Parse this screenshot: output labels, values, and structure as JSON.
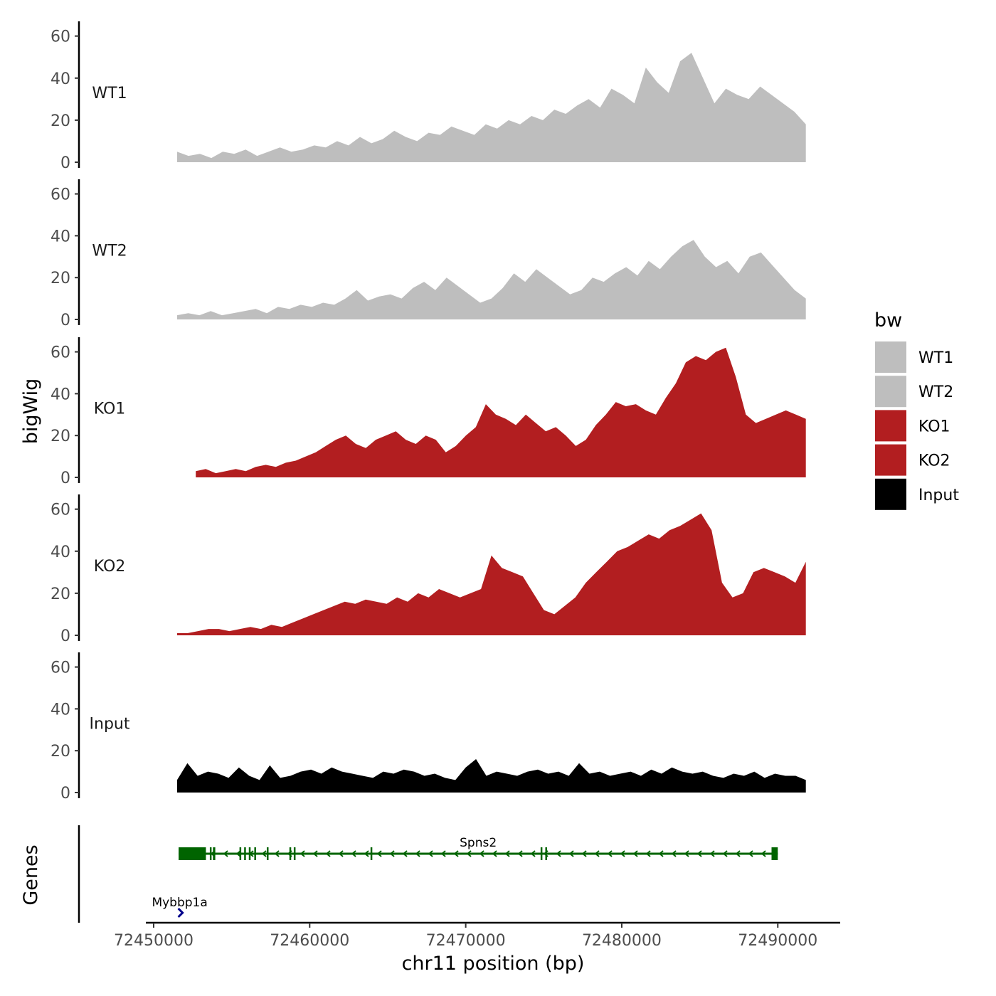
{
  "chart_data": {
    "type": "area",
    "ylabel": "bigWig",
    "xlabel": "chr11 position (bp)",
    "genes_label": "Genes",
    "ylim": [
      0,
      67
    ],
    "yticks": [
      0,
      20,
      40,
      60
    ],
    "xlim": [
      72449500,
      72494000
    ],
    "xticks": [
      72450000,
      72460000,
      72470000,
      72480000,
      72490000
    ],
    "xtick_labels": [
      "72450000",
      "72460000",
      "72470000",
      "72480000",
      "72490000"
    ],
    "legend": {
      "title": "bw",
      "position": "right",
      "items": [
        {
          "label": "WT1",
          "color": "#bebebe"
        },
        {
          "label": "WT2",
          "color": "#bebebe"
        },
        {
          "label": "KO1",
          "color": "#b21e20"
        },
        {
          "label": "KO2",
          "color": "#b21e20"
        },
        {
          "label": "Input",
          "color": "#000000"
        }
      ]
    },
    "series": [
      {
        "name": "WT1",
        "color": "#bebebe",
        "start": 72451500,
        "end": 72491800,
        "values": [
          5,
          3,
          4,
          2,
          5,
          4,
          6,
          3,
          5,
          7,
          5,
          6,
          8,
          7,
          10,
          8,
          12,
          9,
          11,
          15,
          12,
          10,
          14,
          13,
          17,
          15,
          13,
          18,
          16,
          20,
          18,
          22,
          20,
          25,
          23,
          27,
          30,
          26,
          35,
          32,
          28,
          45,
          38,
          33,
          48,
          52,
          40,
          28,
          35,
          32,
          30,
          36,
          32,
          28,
          24,
          18
        ]
      },
      {
        "name": "WT2",
        "color": "#bebebe",
        "start": 72451500,
        "end": 72491800,
        "values": [
          2,
          3,
          2,
          4,
          2,
          3,
          4,
          5,
          3,
          6,
          5,
          7,
          6,
          8,
          7,
          10,
          14,
          9,
          11,
          12,
          10,
          15,
          18,
          14,
          20,
          16,
          12,
          8,
          10,
          15,
          22,
          18,
          24,
          20,
          16,
          12,
          14,
          20,
          18,
          22,
          25,
          21,
          28,
          24,
          30,
          35,
          38,
          30,
          25,
          28,
          22,
          30,
          32,
          26,
          20,
          14,
          10
        ]
      },
      {
        "name": "KO1",
        "color": "#b21e20",
        "start": 72452700,
        "end": 72491800,
        "values": [
          3,
          4,
          2,
          3,
          4,
          3,
          5,
          6,
          5,
          7,
          8,
          10,
          12,
          15,
          18,
          20,
          16,
          14,
          18,
          20,
          22,
          18,
          16,
          20,
          18,
          12,
          15,
          20,
          24,
          35,
          30,
          28,
          25,
          30,
          26,
          22,
          24,
          20,
          15,
          18,
          25,
          30,
          36,
          34,
          35,
          32,
          30,
          38,
          45,
          55,
          58,
          56,
          60,
          62,
          48,
          30,
          26,
          28,
          30,
          32,
          30,
          28
        ]
      },
      {
        "name": "KO2",
        "color": "#b21e20",
        "start": 72451500,
        "end": 72491800,
        "values": [
          1,
          1,
          2,
          3,
          3,
          2,
          3,
          4,
          3,
          5,
          4,
          6,
          8,
          10,
          12,
          14,
          16,
          15,
          17,
          16,
          15,
          18,
          16,
          20,
          18,
          22,
          20,
          18,
          20,
          22,
          38,
          32,
          30,
          28,
          20,
          12,
          10,
          14,
          18,
          25,
          30,
          35,
          40,
          42,
          45,
          48,
          46,
          50,
          52,
          55,
          58,
          50,
          25,
          18,
          20,
          30,
          32,
          30,
          28,
          25,
          35
        ]
      },
      {
        "name": "Input",
        "color": "#000000",
        "start": 72451500,
        "end": 72491800,
        "values": [
          6,
          14,
          8,
          10,
          9,
          7,
          12,
          8,
          6,
          13,
          7,
          8,
          10,
          11,
          9,
          12,
          10,
          9,
          8,
          7,
          10,
          9,
          11,
          10,
          8,
          9,
          7,
          6,
          12,
          16,
          8,
          10,
          9,
          8,
          10,
          11,
          9,
          10,
          8,
          14,
          9,
          10,
          8,
          9,
          10,
          8,
          11,
          9,
          12,
          10,
          9,
          10,
          8,
          7,
          9,
          8,
          10,
          7,
          9,
          8,
          8,
          6
        ]
      }
    ],
    "genes": [
      {
        "name": "Spns2",
        "color": "#006400",
        "start": 72451600,
        "end": 72490000,
        "strand": "-",
        "row": 1,
        "exons": [
          [
            72451600,
            72453350
          ],
          [
            72453600,
            72453700
          ],
          [
            72453800,
            72453950
          ],
          [
            72455500,
            72455600
          ],
          [
            72455800,
            72455860
          ],
          [
            72456100,
            72456180
          ],
          [
            72456450,
            72456520
          ],
          [
            72457250,
            72457320
          ],
          [
            72458700,
            72458770
          ],
          [
            72458980,
            72459050
          ],
          [
            72463900,
            72464000
          ],
          [
            72474800,
            72474870
          ],
          [
            72475100,
            72475170
          ],
          [
            72489600,
            72490000
          ]
        ]
      },
      {
        "name": "Mybbp1a",
        "color": "#00008b",
        "start": 72451580,
        "end": 72451800,
        "strand": "+",
        "row": 2,
        "exons": [
          [
            72451580,
            72451800
          ]
        ]
      }
    ]
  }
}
